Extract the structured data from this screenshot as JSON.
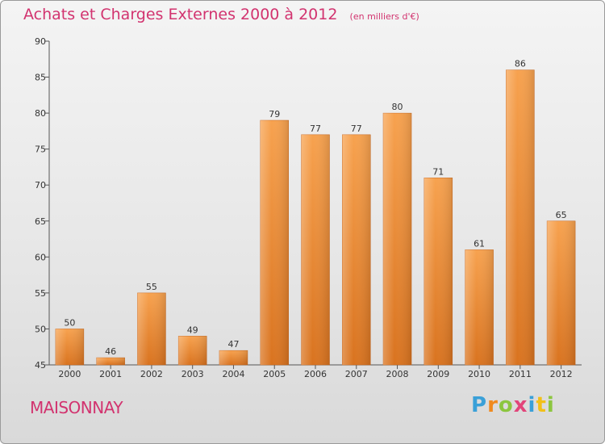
{
  "title": "Achats et Charges Externes 2000 à 2012",
  "subtitle": "(en milliers d'€)",
  "commune": "MAISONNAY",
  "brand": {
    "letters": [
      "P",
      "r",
      "o",
      "x",
      "i",
      "t",
      "i"
    ],
    "colors": [
      "#3aa0d8",
      "#f08a1e",
      "#8cc63f",
      "#e2457a",
      "#3aa0d8",
      "#f2c018",
      "#8cc63f"
    ]
  },
  "colors": {
    "title": "#d2336f",
    "bar_light": "#f7a24f",
    "bar_dark": "#d9731f",
    "axis": "#555555",
    "grid": "#c8c8c8"
  },
  "chart_data": {
    "type": "bar",
    "title": "Achats et Charges Externes 2000 à 2012",
    "subtitle": "(en milliers d'€)",
    "xlabel": "",
    "ylabel": "",
    "categories": [
      "2000",
      "2001",
      "2002",
      "2003",
      "2004",
      "2005",
      "2006",
      "2007",
      "2008",
      "2009",
      "2010",
      "2011",
      "2012"
    ],
    "values": [
      50,
      46,
      55,
      49,
      47,
      79,
      77,
      77,
      80,
      71,
      61,
      86,
      65
    ],
    "ylim": [
      45,
      90
    ],
    "yticks": [
      45,
      50,
      55,
      60,
      65,
      70,
      75,
      80,
      85,
      90
    ],
    "grid": false,
    "legend": "none"
  }
}
